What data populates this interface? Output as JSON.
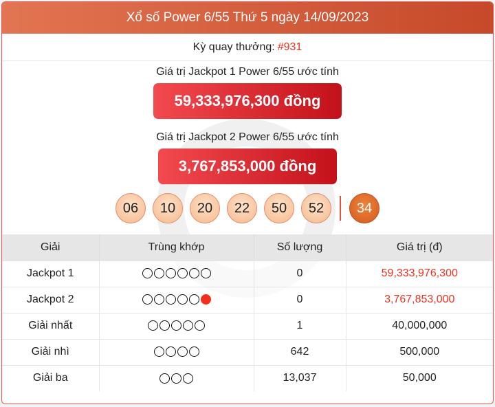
{
  "header": {
    "title": "Xổ số Power 6/55 Thứ 5 ngày 14/09/2023"
  },
  "draw": {
    "label": "Kỳ quay thưởng:",
    "number": "#931"
  },
  "jackpot1": {
    "label": "Giá trị Jackpot 1 Power 6/55 ước tính",
    "value": "59,333,976,300 đồng"
  },
  "jackpot2": {
    "label": "Giá trị Jackpot 2 Power 6/55 ước tính",
    "value": "3,767,853,000 đồng"
  },
  "balls": [
    "06",
    "10",
    "20",
    "22",
    "50",
    "52"
  ],
  "special_ball": "34",
  "colors": {
    "accent": "#e8321e",
    "header": "#d65a36"
  },
  "table": {
    "headers": [
      "Giải",
      "Trùng khớp",
      "Số lượng",
      "Giá trị (đ)"
    ],
    "rows": [
      {
        "prize": "Jackpot 1",
        "match": 6,
        "special": false,
        "count": "0",
        "value": "59,333,976,300",
        "highlight": true
      },
      {
        "prize": "Jackpot 2",
        "match": 5,
        "special": true,
        "count": "0",
        "value": "3,767,853,000",
        "highlight": true
      },
      {
        "prize": "Giải nhất",
        "match": 5,
        "special": false,
        "count": "1",
        "value": "40,000,000",
        "highlight": false
      },
      {
        "prize": "Giải nhì",
        "match": 4,
        "special": false,
        "count": "642",
        "value": "500,000",
        "highlight": false
      },
      {
        "prize": "Giải ba",
        "match": 3,
        "special": false,
        "count": "13,037",
        "value": "50,000",
        "highlight": false
      }
    ]
  }
}
